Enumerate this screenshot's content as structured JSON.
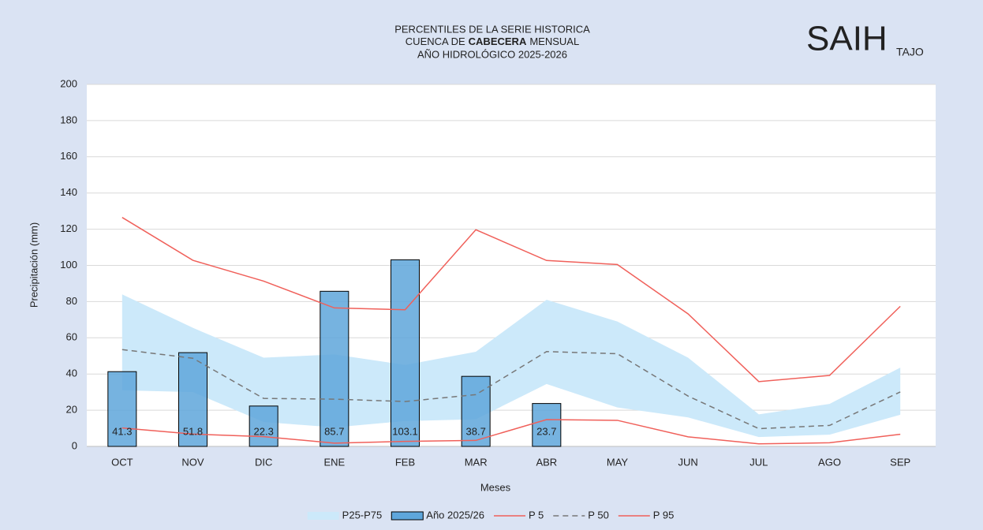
{
  "chart_data": {
    "type": "combo",
    "title": [
      "PERCENTILES DE LA SERIE HISTORICA",
      [
        "CUENCA DE",
        "CABECERA",
        "MENSUAL"
      ],
      "AÑO HIDROLÓGICO 2025-2026"
    ],
    "logo": {
      "main": "SAIH",
      "sub": "TAJO"
    },
    "y_label": "Precipitación (mm)",
    "x_label": "Meses",
    "categories": [
      "OCT",
      "NOV",
      "DIC",
      "ENE",
      "FEB",
      "MAR",
      "ABR",
      "MAY",
      "JUN",
      "JUL",
      "AGO",
      "SEP"
    ],
    "ylim": [
      0,
      200
    ],
    "yticks": [
      0,
      20,
      40,
      60,
      80,
      100,
      120,
      140,
      160,
      180,
      200
    ],
    "grid": true,
    "series": [
      {
        "name": "P25-P75",
        "type": "band",
        "color": "#cce9fa",
        "low": [
          31.0,
          30.0,
          13.5,
          10.5,
          14.0,
          15.0,
          34.5,
          21.5,
          16.0,
          5.2,
          6.5,
          17.5
        ],
        "high": [
          84.0,
          65.5,
          49.0,
          50.8,
          45.0,
          52.3,
          81.0,
          69.0,
          49.0,
          17.7,
          23.5,
          43.5
        ]
      },
      {
        "name": "Año 2025/26",
        "type": "bar",
        "color": "#5ea6db",
        "values": [
          41.3,
          51.8,
          22.3,
          85.7,
          103.1,
          38.7,
          23.7,
          null,
          null,
          null,
          null,
          null
        ]
      },
      {
        "name": "P 5",
        "type": "line",
        "color": "#f0605a",
        "dash": false,
        "values": [
          10.2,
          6.8,
          5.4,
          1.8,
          2.8,
          3.3,
          14.8,
          14.4,
          5.3,
          1.4,
          2.0,
          6.7
        ]
      },
      {
        "name": "P 50",
        "type": "line",
        "color": "#777777",
        "dash": true,
        "values": [
          53.5,
          48.7,
          26.5,
          26.1,
          24.8,
          28.6,
          52.4,
          51.2,
          27.8,
          9.8,
          11.6,
          30.1
        ]
      },
      {
        "name": "P 95",
        "type": "line",
        "color": "#f0605a",
        "dash": false,
        "values": [
          126.5,
          102.8,
          91.3,
          76.5,
          75.5,
          119.7,
          102.7,
          100.5,
          73.2,
          35.8,
          39.2,
          77.4
        ]
      }
    ]
  }
}
